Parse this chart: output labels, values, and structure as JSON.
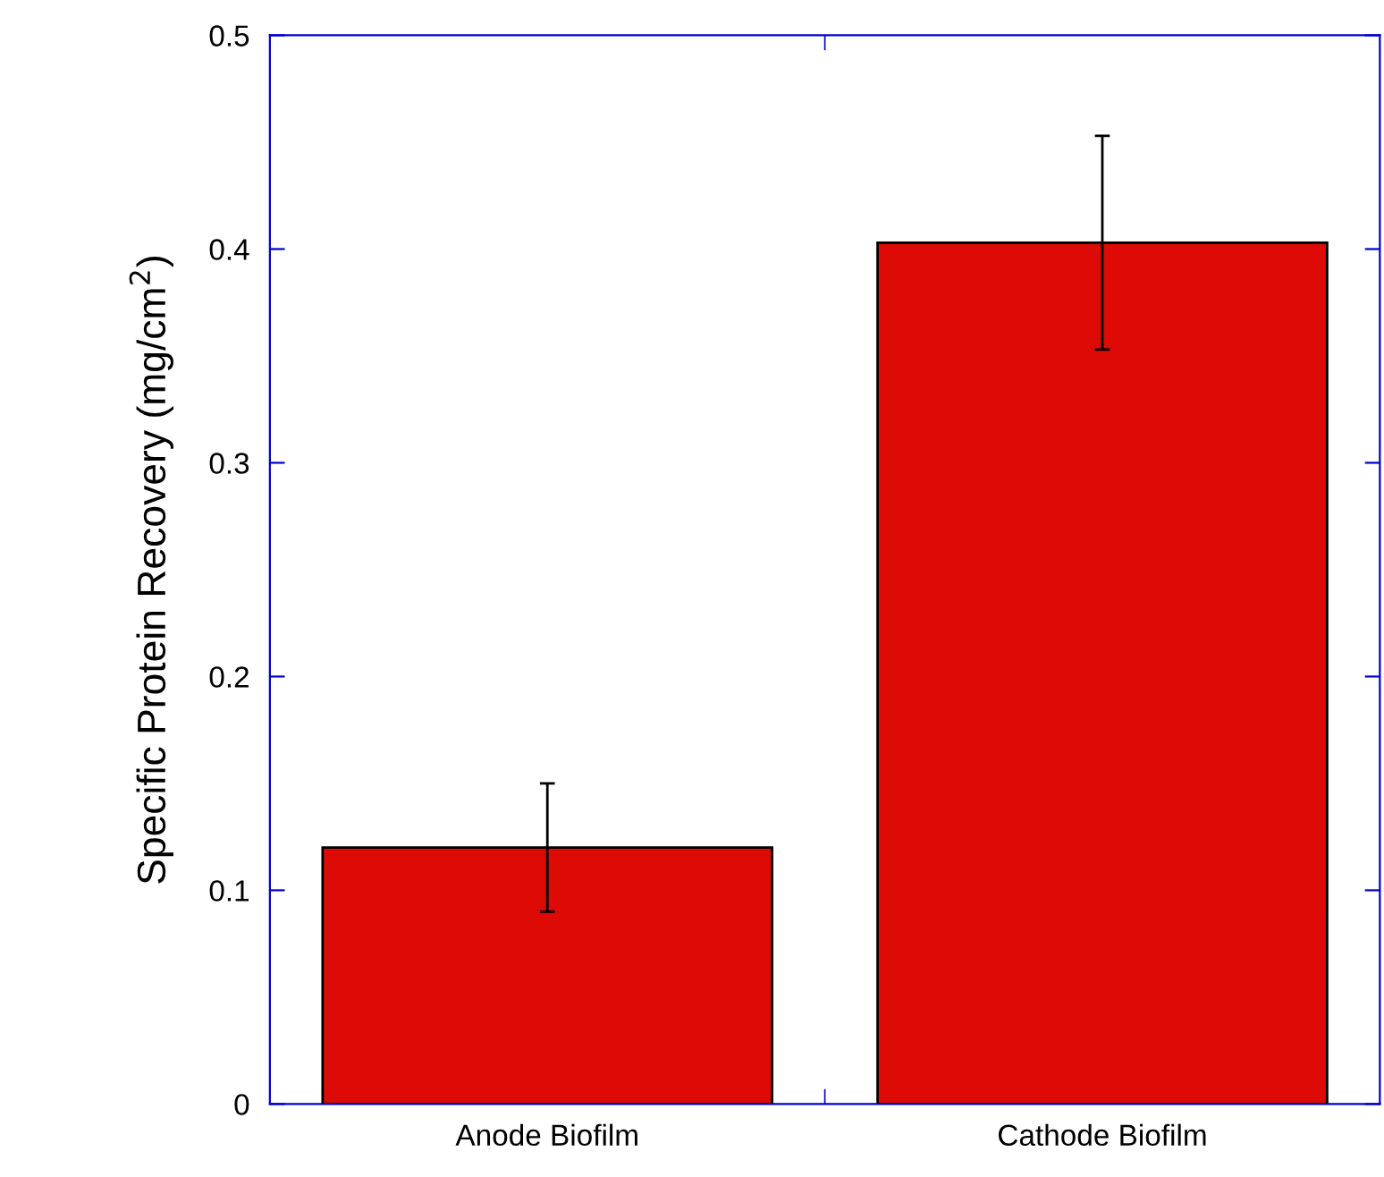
{
  "chart_data": {
    "type": "bar",
    "ylabel": "Specific Protein Recovery (mg/cm$^{2}$)",
    "categories": [
      "Anode Biofilm",
      "Cathode Biofilm"
    ],
    "values": [
      0.12,
      0.403
    ],
    "errors": [
      0.03,
      0.05
    ],
    "color": "#dd0a05",
    "ylim": [
      0,
      0.5
    ],
    "yticks": [
      {
        "value": 0,
        "label": "0"
      },
      0.1,
      0.2,
      0.3,
      0.4,
      0.5
    ],
    "grid": false
  }
}
